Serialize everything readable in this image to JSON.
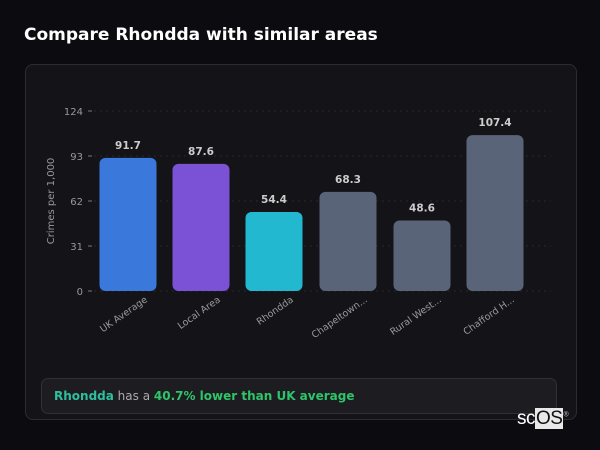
{
  "title": "Compare Rhondda with similar areas",
  "chart_data": {
    "type": "bar",
    "title": "",
    "ylabel": "Crimes per 1,000",
    "xlabel": "",
    "ylim": [
      0,
      124
    ],
    "yticks": [
      0,
      31,
      62,
      93,
      124
    ],
    "grid": true,
    "categories": [
      "UK Average",
      "Local Area",
      "Rhondda",
      "Chapeltown...",
      "Rural West...",
      "Chafford H..."
    ],
    "values": [
      91.7,
      87.6,
      54.4,
      68.3,
      48.6,
      107.4
    ],
    "value_labels": [
      "91.7",
      "87.6",
      "54.4",
      "68.3",
      "48.6",
      "107.4"
    ],
    "colors": [
      "#3a78dc",
      "#7b52d6",
      "#22b8d0",
      "#5a6478",
      "#5a6478",
      "#5a6478"
    ]
  },
  "footer": {
    "area": "Rhondda",
    "middle": " has a ",
    "highlight": "40.7% lower than UK average"
  },
  "logo": {
    "text1": "sc",
    "text2": "OS",
    "mark": "®"
  }
}
